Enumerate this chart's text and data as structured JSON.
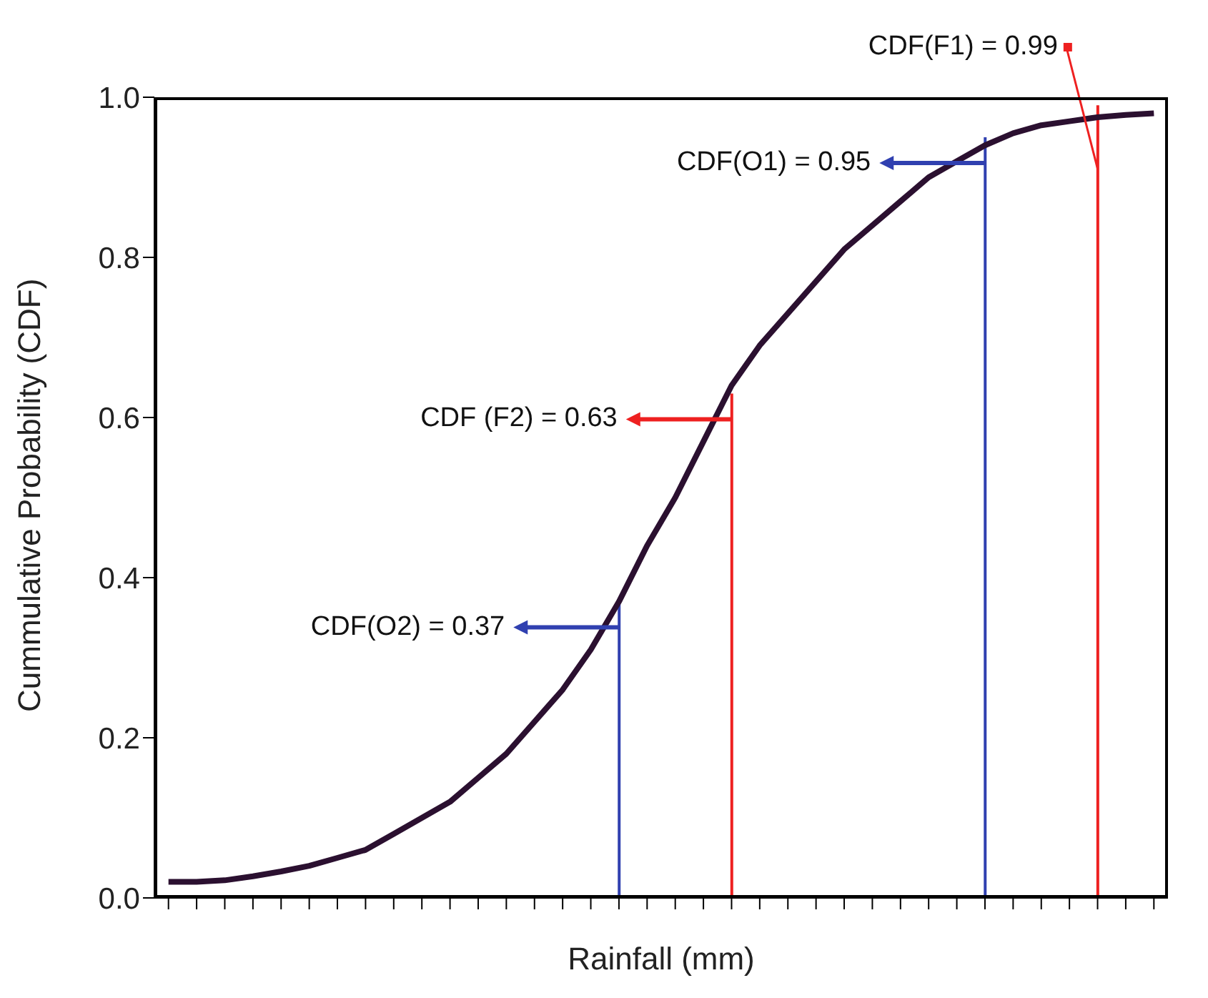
{
  "chart_data": {
    "type": "line",
    "xlabel": "Rainfall (mm)",
    "ylabel": "Cummulative  Probability (CDF)",
    "categories": [
      null,
      null,
      null,
      null,
      null,
      null,
      null,
      null,
      null,
      null,
      null,
      null,
      null,
      null,
      null,
      null,
      null,
      null,
      null,
      null,
      null,
      null,
      null,
      null,
      null,
      null,
      null,
      null,
      null,
      null,
      null,
      null,
      null,
      null,
      null,
      null
    ],
    "series": [
      {
        "color": "#2b1030",
        "values": [
          0.02,
          0.02,
          0.022,
          0.027,
          0.033,
          0.04,
          0.05,
          0.06,
          0.08,
          0.1,
          0.12,
          0.15,
          0.18,
          0.22,
          0.26,
          0.31,
          0.37,
          0.44,
          0.5,
          0.57,
          0.64,
          0.69,
          0.73,
          0.77,
          0.81,
          0.84,
          0.87,
          0.9,
          0.92,
          0.94,
          0.955,
          0.965,
          0.97,
          0.975,
          0.978,
          0.98
        ]
      },
      {
        "type": "bar",
        "colors": [
          null,
          null,
          null,
          null,
          null,
          null,
          null,
          null,
          null,
          null,
          null,
          null,
          null,
          null,
          null,
          null,
          "#3040b0",
          null,
          null,
          null,
          "#ee2020",
          null,
          null,
          null,
          null,
          null,
          null,
          null,
          null,
          "#3040b0",
          null,
          null,
          null,
          "#ee2020",
          null,
          null
        ],
        "values": [
          null,
          null,
          null,
          null,
          null,
          null,
          null,
          null,
          null,
          null,
          null,
          null,
          null,
          null,
          null,
          null,
          0.37,
          null,
          null,
          null,
          0.63,
          null,
          null,
          null,
          null,
          null,
          null,
          null,
          null,
          0.95,
          null,
          null,
          null,
          0.99,
          null,
          null
        ],
        "value_labels": [
          null,
          null,
          null,
          null,
          null,
          null,
          null,
          null,
          null,
          null,
          null,
          null,
          null,
          null,
          null,
          null,
          "CDF(O2) = 0.37",
          null,
          null,
          null,
          "CDF (F2) = 0.63",
          null,
          null,
          null,
          null,
          null,
          null,
          null,
          null,
          "CDF(O1) = 0.95",
          null,
          null,
          null,
          "CDF(F1) = 0.99",
          null,
          null
        ]
      }
    ],
    "ylim": [
      0,
      1
    ],
    "yticks": [
      {
        "value": 0,
        "label": "0.0"
      },
      0.2,
      0.4,
      0.6,
      0.8,
      {
        "value": 1,
        "label": "1.0"
      }
    ],
    "tick_labels": "y",
    "marker": "none"
  }
}
